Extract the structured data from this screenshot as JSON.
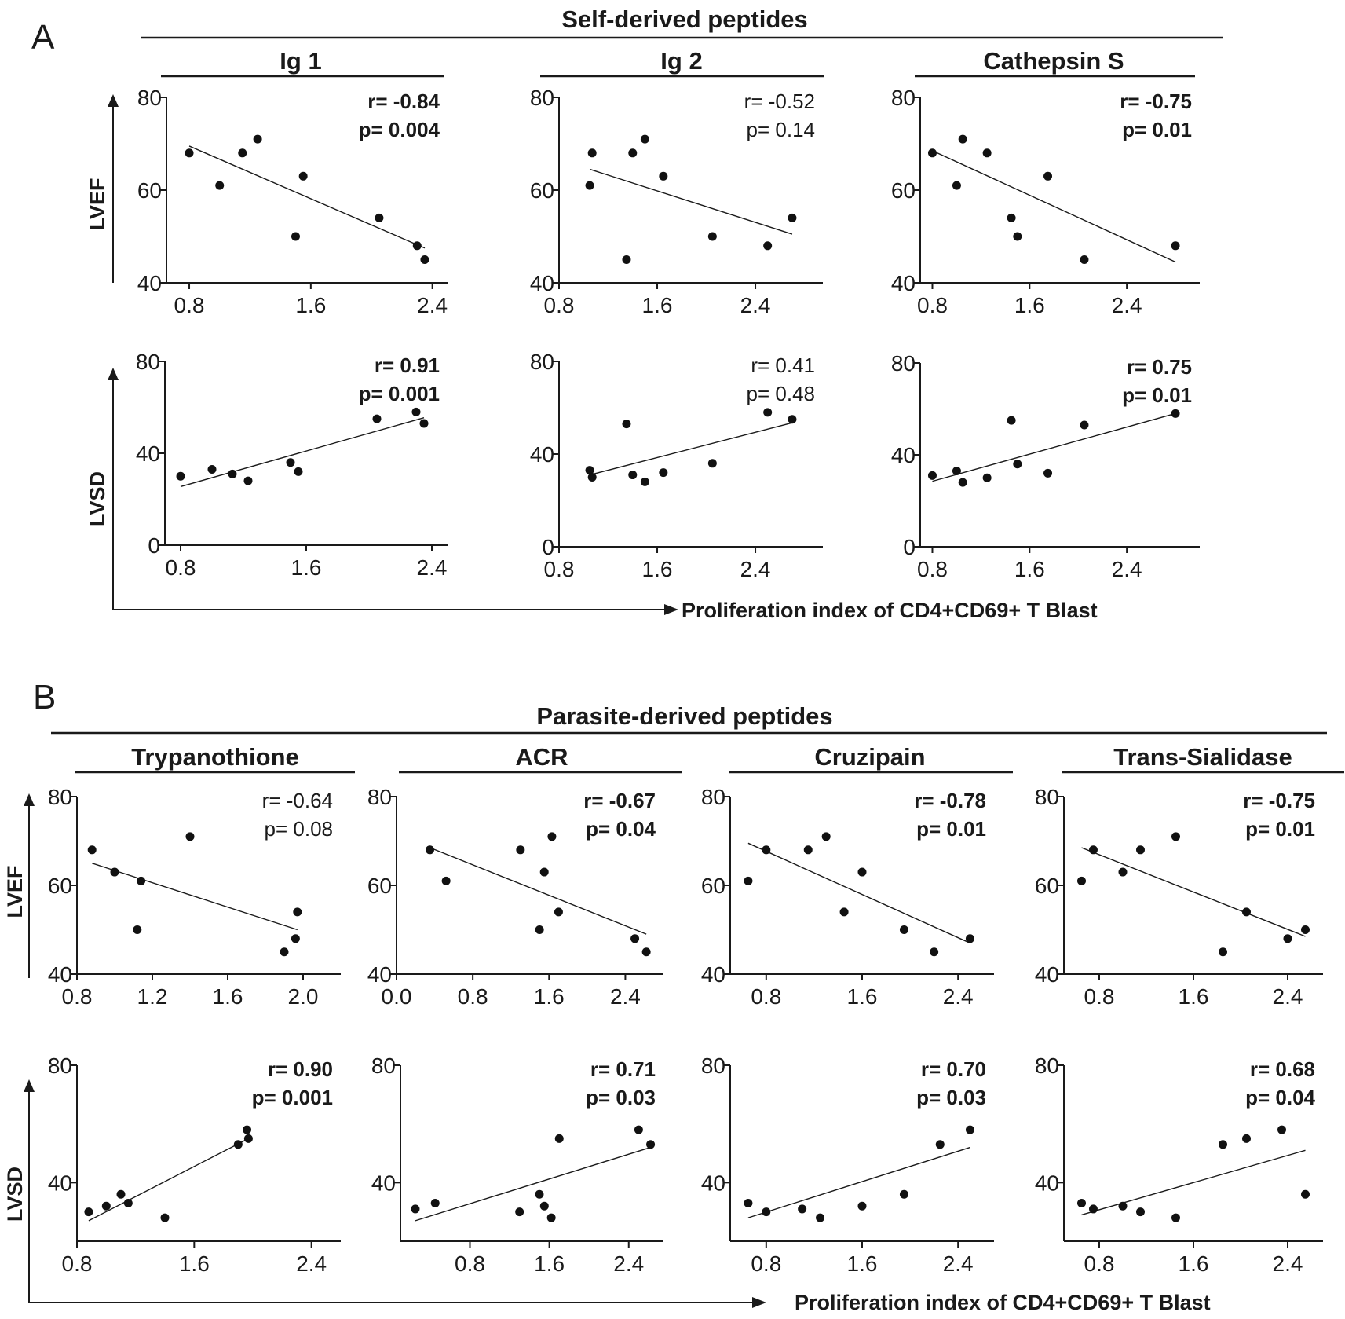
{
  "figure": {
    "panel_a_letter": "A",
    "panel_b_letter": "B",
    "section_a_title": "Self-derived peptides",
    "section_b_title": "Parasite-derived peptides",
    "ylabel_top": "LVEF",
    "ylabel_bottom": "LVSD",
    "xlabel": "Proliferation index of CD4+CD69+ T Blast"
  },
  "chart_data": [
    {
      "id": "a-ig1-lvef",
      "type": "scatter",
      "section": "A",
      "title": "Ig 1",
      "ylabel": "LVEF",
      "ylim": [
        40,
        80
      ],
      "yticks": [
        40,
        60,
        80
      ],
      "xlim": [
        0.65,
        2.5
      ],
      "xticks": [
        0.8,
        1.6,
        2.4
      ],
      "xtick_labels": [
        "0.8",
        "1.6",
        "2.4"
      ],
      "x": [
        0.8,
        1.0,
        1.15,
        1.25,
        1.5,
        1.55,
        2.05,
        2.3,
        2.35
      ],
      "y": [
        68,
        61,
        68,
        71,
        50,
        63,
        54,
        48,
        45
      ],
      "fit": [
        [
          0.8,
          69.5
        ],
        [
          2.35,
          47.5
        ]
      ],
      "stat_r": "r= -0.84",
      "stat_p": "p= 0.004",
      "significant": true
    },
    {
      "id": "a-ig2-lvef",
      "type": "scatter",
      "section": "A",
      "title": "Ig 2",
      "ylabel": "LVEF",
      "ylim": [
        40,
        80
      ],
      "yticks": [
        40,
        60,
        80
      ],
      "xlim": [
        0.8,
        2.95
      ],
      "xticks": [
        0.8,
        1.6,
        2.4
      ],
      "xtick_labels": [
        "0.8",
        "1.6",
        "2.4"
      ],
      "x": [
        1.05,
        1.07,
        1.35,
        1.4,
        1.5,
        1.65,
        2.05,
        2.5,
        2.7
      ],
      "y": [
        61,
        68,
        45,
        68,
        71,
        63,
        50,
        48,
        54
      ],
      "fit": [
        [
          1.05,
          64.5
        ],
        [
          2.7,
          50.5
        ]
      ],
      "stat_r": "r= -0.52",
      "stat_p": "p= 0.14",
      "significant": false
    },
    {
      "id": "a-cat-lvef",
      "type": "scatter",
      "section": "A",
      "title": "Cathepsin S",
      "ylabel": "LVEF",
      "ylim": [
        40,
        80
      ],
      "yticks": [
        40,
        60,
        80
      ],
      "xlim": [
        0.7,
        3.0
      ],
      "xticks": [
        0.8,
        1.6,
        2.4
      ],
      "xtick_labels": [
        "0.8",
        "1.6",
        "2.4"
      ],
      "x": [
        0.8,
        1.0,
        1.05,
        1.25,
        1.45,
        1.5,
        1.75,
        2.05,
        2.8
      ],
      "y": [
        68,
        61,
        71,
        68,
        54,
        50,
        63,
        45,
        48
      ],
      "fit": [
        [
          0.8,
          68.5
        ],
        [
          2.8,
          44.5
        ]
      ],
      "stat_r": "r= -0.75",
      "stat_p": "p= 0.01",
      "significant": true
    },
    {
      "id": "a-ig1-lvsd",
      "type": "scatter",
      "section": "A",
      "title": "Ig 1",
      "ylabel": "LVSD",
      "ylim": [
        0,
        80
      ],
      "yticks": [
        0,
        40,
        80
      ],
      "xlim": [
        0.7,
        2.5
      ],
      "xticks": [
        0.8,
        1.6,
        2.4
      ],
      "xtick_labels": [
        "0.8",
        "1.6",
        "2.4"
      ],
      "x": [
        0.8,
        1.0,
        1.13,
        1.23,
        1.5,
        1.55,
        2.05,
        2.3,
        2.35
      ],
      "y": [
        30,
        33,
        31,
        28,
        36,
        32,
        55,
        58,
        53
      ],
      "fit": [
        [
          0.8,
          25.5
        ],
        [
          2.35,
          55.5
        ]
      ],
      "stat_r": "r= 0.91",
      "stat_p": "p= 0.001",
      "significant": true
    },
    {
      "id": "a-ig2-lvsd",
      "type": "scatter",
      "section": "A",
      "title": "Ig 2",
      "ylabel": "LVSD",
      "ylim": [
        0,
        80
      ],
      "yticks": [
        0,
        40,
        80
      ],
      "xlim": [
        0.8,
        2.95
      ],
      "xticks": [
        0.8,
        1.6,
        2.4
      ],
      "xtick_labels": [
        "0.8",
        "1.6",
        "2.4"
      ],
      "x": [
        1.05,
        1.07,
        1.35,
        1.4,
        1.5,
        1.65,
        2.05,
        2.5,
        2.7
      ],
      "y": [
        33,
        30,
        53,
        31,
        28,
        32,
        36,
        58,
        55
      ],
      "fit": [
        [
          1.05,
          31
        ],
        [
          2.7,
          53.5
        ]
      ],
      "stat_r": "r= 0.41",
      "stat_p": "p= 0.48",
      "significant": false
    },
    {
      "id": "a-cat-lvsd",
      "type": "scatter",
      "section": "A",
      "title": "Cathepsin S",
      "ylabel": "LVSD",
      "ylim": [
        0,
        80
      ],
      "yticks": [
        0,
        40,
        80
      ],
      "xlim": [
        0.7,
        3.0
      ],
      "xticks": [
        0.8,
        1.6,
        2.4
      ],
      "xtick_labels": [
        "0.8",
        "1.6",
        "2.4"
      ],
      "x": [
        0.8,
        1.0,
        1.05,
        1.25,
        1.45,
        1.5,
        1.75,
        2.05,
        2.8
      ],
      "y": [
        31,
        33,
        28,
        30,
        55,
        36,
        32,
        53,
        58
      ],
      "fit": [
        [
          0.8,
          28.5
        ],
        [
          2.8,
          58
        ]
      ],
      "stat_r": "r= 0.75",
      "stat_p": "p= 0.01",
      "significant": true
    },
    {
      "id": "b-try-lvef",
      "type": "scatter",
      "section": "B",
      "title": "Trypanothione",
      "ylabel": "LVEF",
      "ylim": [
        40,
        80
      ],
      "yticks": [
        40,
        60,
        80
      ],
      "xlim": [
        0.8,
        2.2
      ],
      "xticks": [
        0.8,
        1.2,
        1.6,
        2.0
      ],
      "xtick_labels": [
        "0.8",
        "1.2",
        "1.6",
        "2.0"
      ],
      "x": [
        0.88,
        1.0,
        1.12,
        1.14,
        1.4,
        1.9,
        1.96,
        1.97
      ],
      "y": [
        68,
        63,
        50,
        61,
        71,
        45,
        48,
        54
      ],
      "fit": [
        [
          0.88,
          65
        ],
        [
          1.97,
          50
        ]
      ],
      "stat_r": "r= -0.64",
      "stat_p": "p= 0.08",
      "significant": false
    },
    {
      "id": "b-acr-lvef",
      "type": "scatter",
      "section": "B",
      "title": "ACR",
      "ylabel": "LVEF",
      "ylim": [
        40,
        80
      ],
      "yticks": [
        40,
        60,
        80
      ],
      "xlim": [
        0,
        2.8
      ],
      "xticks": [
        0,
        0.8,
        1.6,
        2.4
      ],
      "xtick_labels": [
        "0.0",
        "0.8",
        "1.6",
        "2.4"
      ],
      "x": [
        0.35,
        0.52,
        1.3,
        1.5,
        1.55,
        1.63,
        1.7,
        2.5,
        2.62
      ],
      "y": [
        68,
        61,
        68,
        50,
        63,
        71,
        54,
        48,
        45
      ],
      "fit": [
        [
          0.35,
          68.5
        ],
        [
          2.62,
          49
        ]
      ],
      "stat_r": "r= -0.67",
      "stat_p": "p= 0.04",
      "significant": true
    },
    {
      "id": "b-cruz-lvef",
      "type": "scatter",
      "section": "B",
      "title": "Cruzipain",
      "ylabel": "LVEF",
      "ylim": [
        40,
        80
      ],
      "yticks": [
        40,
        60,
        80
      ],
      "xlim": [
        0.5,
        2.7
      ],
      "xticks": [
        0.8,
        1.6,
        2.4
      ],
      "xtick_labels": [
        "0.8",
        "1.6",
        "2.4"
      ],
      "x": [
        0.65,
        0.8,
        1.15,
        1.3,
        1.45,
        1.6,
        1.95,
        2.2,
        2.5
      ],
      "y": [
        61,
        68,
        68,
        71,
        54,
        63,
        50,
        45,
        48
      ],
      "fit": [
        [
          0.65,
          69.5
        ],
        [
          2.5,
          47
        ]
      ],
      "stat_r": "r= -0.78",
      "stat_p": "p= 0.01",
      "significant": true
    },
    {
      "id": "b-ts-lvef",
      "type": "scatter",
      "section": "B",
      "title": "Trans-Sialidase",
      "ylabel": "LVEF",
      "ylim": [
        40,
        80
      ],
      "yticks": [
        40,
        60,
        80
      ],
      "xlim": [
        0.5,
        2.7
      ],
      "xticks": [
        0.8,
        1.6,
        2.4
      ],
      "xtick_labels": [
        "0.8",
        "1.6",
        "2.4"
      ],
      "x": [
        0.65,
        0.75,
        1.0,
        1.15,
        1.45,
        1.85,
        2.05,
        2.4,
        2.55
      ],
      "y": [
        61,
        68,
        63,
        68,
        71,
        45,
        54,
        48,
        50
      ],
      "fit": [
        [
          0.65,
          68.5
        ],
        [
          2.55,
          48.5
        ]
      ],
      "stat_r": "r= -0.75",
      "stat_p": "p= 0.01",
      "significant": true
    },
    {
      "id": "b-try-lvsd",
      "type": "scatter",
      "section": "B",
      "title": "Trypanothione",
      "ylabel": "LVSD",
      "ylim": [
        20,
        80
      ],
      "yticks": [
        40,
        80
      ],
      "xlim": [
        0.8,
        2.6
      ],
      "xticks": [
        0.8,
        1.6,
        2.4
      ],
      "xtick_labels": [
        "0.8",
        "1.6",
        "2.4"
      ],
      "x": [
        0.88,
        1.0,
        1.1,
        1.15,
        1.4,
        1.9,
        1.96,
        1.97
      ],
      "y": [
        30,
        32,
        36,
        33,
        28,
        53,
        58,
        55
      ],
      "fit": [
        [
          0.88,
          27
        ],
        [
          1.97,
          55
        ]
      ],
      "stat_r": "r= 0.90",
      "stat_p": "p= 0.001",
      "significant": true
    },
    {
      "id": "b-acr-lvsd",
      "type": "scatter",
      "section": "B",
      "title": "ACR",
      "ylabel": "LVSD",
      "ylim": [
        20,
        80
      ],
      "yticks": [
        40,
        80
      ],
      "xlim": [
        0.1,
        2.75
      ],
      "xticks": [
        0.8,
        1.6,
        2.4
      ],
      "xtick_labels": [
        "0.8",
        "1.6",
        "2.4"
      ],
      "x": [
        0.25,
        0.45,
        1.3,
        1.5,
        1.55,
        1.62,
        1.7,
        2.5,
        2.62
      ],
      "y": [
        31,
        33,
        30,
        36,
        32,
        28,
        55,
        58,
        53
      ],
      "fit": [
        [
          0.25,
          27
        ],
        [
          2.62,
          52
        ]
      ],
      "stat_r": "r= 0.71",
      "stat_p": "p= 0.03",
      "significant": true
    },
    {
      "id": "b-cruz-lvsd",
      "type": "scatter",
      "section": "B",
      "title": "Cruzipain",
      "ylabel": "LVSD",
      "ylim": [
        20,
        80
      ],
      "yticks": [
        40,
        80
      ],
      "xlim": [
        0.5,
        2.7
      ],
      "xticks": [
        0.8,
        1.6,
        2.4
      ],
      "xtick_labels": [
        "0.8",
        "1.6",
        "2.4"
      ],
      "x": [
        0.65,
        0.8,
        1.1,
        1.25,
        1.6,
        1.95,
        2.25,
        2.5
      ],
      "y": [
        33,
        30,
        31,
        28,
        32,
        36,
        53,
        58
      ],
      "fit": [
        [
          0.65,
          28
        ],
        [
          2.5,
          52
        ]
      ],
      "stat_r": "r= 0.70",
      "stat_p": "p= 0.03",
      "significant": true
    },
    {
      "id": "b-ts-lvsd",
      "type": "scatter",
      "section": "B",
      "title": "Trans-Sialidase",
      "ylabel": "LVSD",
      "ylim": [
        20,
        80
      ],
      "yticks": [
        40,
        80
      ],
      "xlim": [
        0.5,
        2.7
      ],
      "xticks": [
        0.8,
        1.6,
        2.4
      ],
      "xtick_labels": [
        "0.8",
        "1.6",
        "2.4"
      ],
      "x": [
        0.65,
        0.75,
        1.0,
        1.15,
        1.45,
        1.85,
        2.05,
        2.35,
        2.55
      ],
      "y": [
        33,
        31,
        32,
        30,
        28,
        53,
        55,
        58,
        36
      ],
      "fit": [
        [
          0.65,
          29
        ],
        [
          2.55,
          51
        ]
      ],
      "stat_r": "r= 0.68",
      "stat_p": "p= 0.04",
      "significant": true
    }
  ]
}
